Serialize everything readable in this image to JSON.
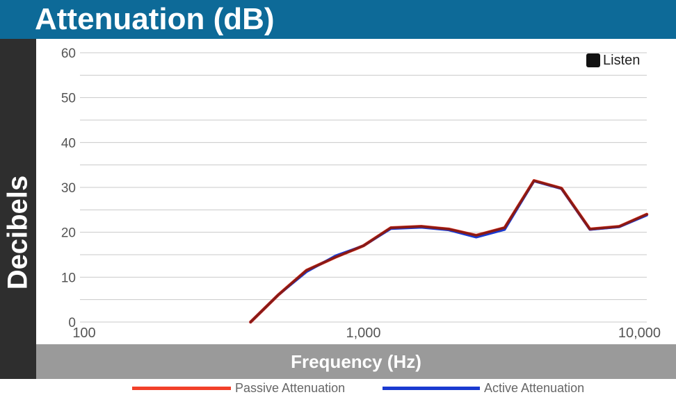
{
  "header": {
    "title": "Attenuation (dB)"
  },
  "logo": {
    "text": "Listen",
    "icon": "ear-icon"
  },
  "chart_data": {
    "type": "line",
    "title": "Attenuation (dB)",
    "xlabel": "Frequency (Hz)",
    "ylabel": "Decibels",
    "xscale": "log",
    "xlim": [
      100,
      10000
    ],
    "ylim": [
      0,
      60
    ],
    "y_ticks": [
      "0",
      "10",
      "20",
      "30",
      "40",
      "50",
      "60"
    ],
    "x_ticks": [
      "100",
      "1,000",
      "10,000"
    ],
    "grid": true,
    "legend": "bottom",
    "series": [
      {
        "name": "Passive Attenuation",
        "color": "#f2402a",
        "points": [
          [
            400,
            0
          ],
          [
            500,
            6
          ],
          [
            630,
            11.5
          ],
          [
            800,
            14.5
          ],
          [
            1000,
            17
          ],
          [
            1250,
            21
          ],
          [
            1600,
            21.3
          ],
          [
            2000,
            20.7
          ],
          [
            2500,
            19.3
          ],
          [
            3150,
            21
          ],
          [
            4000,
            31.5
          ],
          [
            5000,
            29.8
          ],
          [
            6300,
            20.7
          ],
          [
            8000,
            21.3
          ],
          [
            10000,
            24
          ]
        ]
      },
      {
        "name": "Active Attenuation",
        "color": "#1a3ad0",
        "points": [
          [
            400,
            0
          ],
          [
            500,
            6
          ],
          [
            630,
            11.2
          ],
          [
            800,
            14.8
          ],
          [
            1000,
            17
          ],
          [
            1250,
            20.8
          ],
          [
            1600,
            21.1
          ],
          [
            2000,
            20.5
          ],
          [
            2500,
            18.9
          ],
          [
            3150,
            20.6
          ],
          [
            4000,
            31.4
          ],
          [
            5000,
            29.7
          ],
          [
            6300,
            20.6
          ],
          [
            8000,
            21.2
          ],
          [
            10000,
            23.8
          ]
        ]
      }
    ],
    "combined_line_color": "#8b1a14"
  }
}
